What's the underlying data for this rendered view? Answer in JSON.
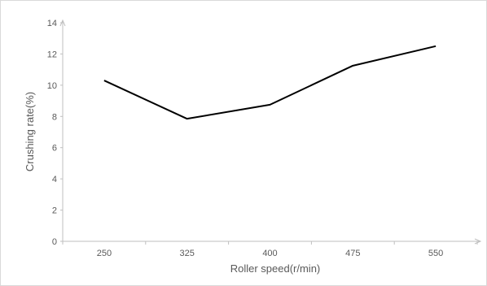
{
  "chart_data": {
    "type": "line",
    "xlabel": "Roller speed(r/min)",
    "ylabel": "Crushing rate(%)",
    "categories": [
      "250",
      "325",
      "400",
      "475",
      "550"
    ],
    "series": [
      {
        "values": [
          10.3,
          7.85,
          8.75,
          11.25,
          12.5
        ]
      }
    ],
    "ylim": [
      0,
      14
    ],
    "yticks": [
      "0",
      "2",
      "4",
      "6",
      "8",
      "10",
      "12",
      "14"
    ],
    "grid": false,
    "legend": "none",
    "colors": {
      "line": "#000000",
      "axis": "#bfbfbf",
      "text": "#595959"
    }
  }
}
